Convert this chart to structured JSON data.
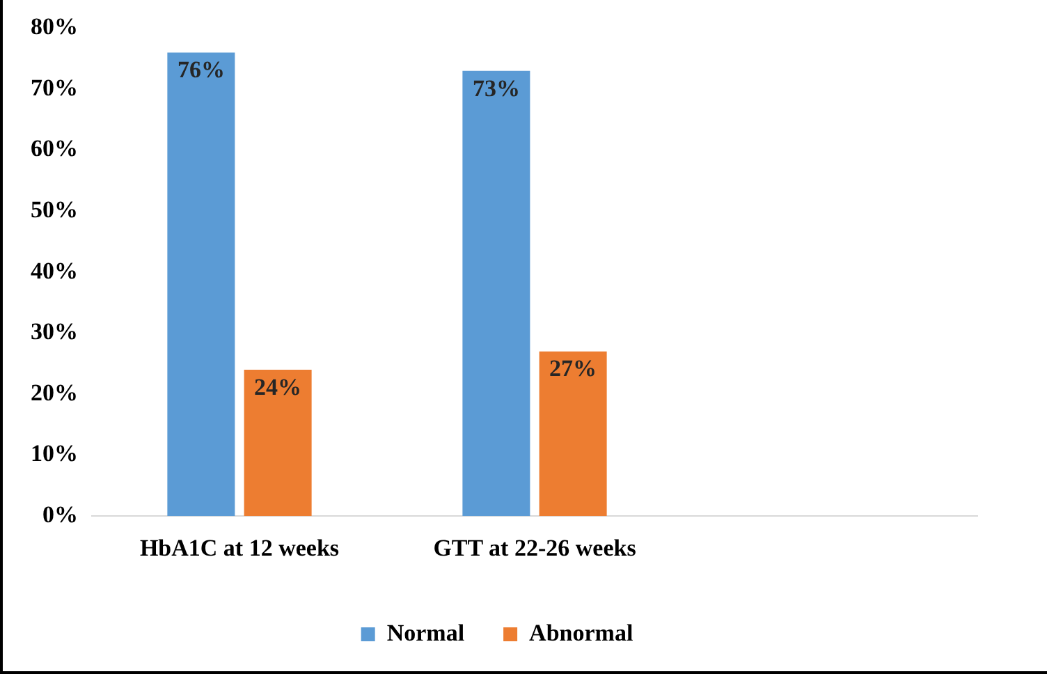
{
  "chart_data": {
    "type": "bar",
    "categories": [
      "HbA1C at 12 weeks",
      "GTT at 22-26 weeks",
      null
    ],
    "series": [
      {
        "name": "Normal",
        "color": "#5b9bd5",
        "values": [
          76,
          73,
          null
        ],
        "value_labels": [
          "76%",
          "73%",
          null
        ]
      },
      {
        "name": "Abnormal",
        "color": "#ed7d31",
        "values": [
          24,
          27,
          null
        ],
        "value_labels": [
          "24%",
          "27%",
          null
        ]
      }
    ],
    "ylim": [
      0,
      80
    ],
    "yticks": [
      {
        "value": 0,
        "label": "0%"
      },
      {
        "value": 10,
        "label": "10%"
      },
      {
        "value": 20,
        "label": "20%"
      },
      {
        "value": 30,
        "label": "30%"
      },
      {
        "value": 40,
        "label": "40%"
      },
      {
        "value": 50,
        "label": "50%"
      },
      {
        "value": 60,
        "label": "60%"
      },
      {
        "value": 70,
        "label": "70%"
      },
      {
        "value": 80,
        "label": "80%"
      }
    ],
    "grid": false,
    "legend": "bottom"
  }
}
